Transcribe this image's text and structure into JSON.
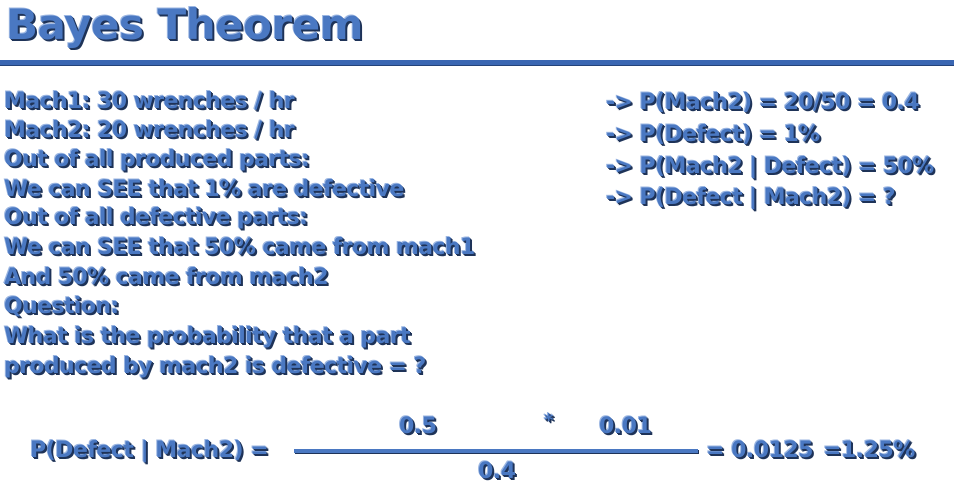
{
  "title": "Bayes Theorem",
  "given": [
    "Mach1: 30 wrenches / hr",
    "Mach2: 20 wrenches / hr",
    "Out of all produced parts:",
    "We can SEE that 1% are defective",
    "Out of all defective parts:",
    "We can SEE that 50% came from mach1",
    "And 50% came from mach2",
    "Question:",
    "What is the probability that a part",
    "produced by mach2 is defective = ?"
  ],
  "derivations": [
    "-> P(Mach2) = 20/50 = 0.4",
    "-> P(Defect) = 1%",
    "-> P(Mach2 | Defect) = 50%",
    "-> P(Defect | Mach2) = ?"
  ],
  "formula": {
    "lhs": "P(Defect | Mach2) =",
    "numerator_a": "0.5",
    "operator": "*",
    "numerator_b": "0.01",
    "denominator": "0.4",
    "result": "= 0.0125",
    "result_percent": "=1.25%"
  },
  "colors": {
    "text": "#4a78c2",
    "shadow": "#1e3358",
    "rule": "#3a66b2"
  }
}
